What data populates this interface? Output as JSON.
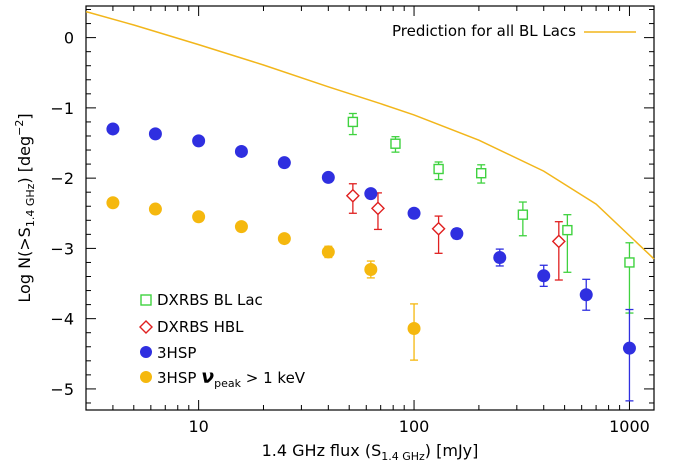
{
  "chart_data": {
    "type": "scatter",
    "xlabel": {
      "main": "1.4 GHz flux (S",
      "sub": "1.4 GHz",
      "tail": ") [mJy]"
    },
    "ylabel": {
      "main": "Log N(>S",
      "sub": "1.4 GHz",
      "tail": ") [deg",
      "sup": "−2",
      "end": "]"
    },
    "x_scale": "log",
    "xlim": [
      3,
      1300
    ],
    "ylim": [
      -5.3,
      0.45
    ],
    "x_ticks": [
      10,
      100,
      1000
    ],
    "x_tick_labels": [
      "10",
      "100",
      "1000"
    ],
    "y_ticks": [
      0,
      -1,
      -2,
      -3,
      -4,
      -5
    ],
    "y_tick_labels": [
      "0",
      "−1",
      "−2",
      "−3",
      "−4",
      "−5"
    ],
    "legend_placement": "bottom-left",
    "prediction": {
      "name": "Prediction for all BL Lacs",
      "color": "#f2b61b",
      "x": [
        3,
        5,
        10,
        20,
        40,
        70,
        100,
        200,
        400,
        700,
        1300
      ],
      "y": [
        0.37,
        0.18,
        -0.1,
        -0.39,
        -0.7,
        -0.94,
        -1.1,
        -1.46,
        -1.9,
        -2.37,
        -3.15
      ]
    },
    "series": [
      {
        "name": "DXRBS BL Lac",
        "marker": "square",
        "color": "#3fd23f",
        "x": [
          52,
          82,
          130,
          205,
          320,
          515,
          1000
        ],
        "y": [
          -1.2,
          -1.51,
          -1.87,
          -1.93,
          -2.52,
          -2.74,
          -3.2
        ],
        "err_up": [
          0.12,
          0.1,
          0.1,
          0.12,
          0.18,
          0.22,
          0.28
        ],
        "err_down": [
          0.18,
          0.12,
          0.15,
          0.14,
          0.3,
          0.6,
          0.72
        ]
      },
      {
        "name": "DXRBS HBL",
        "marker": "diamond",
        "color": "#e02020",
        "x": [
          52,
          68,
          130,
          470
        ],
        "y": [
          -2.25,
          -2.43,
          -2.72,
          -2.9
        ],
        "err_up": [
          0.17,
          0.22,
          0.18,
          0.28
        ],
        "err_down": [
          0.25,
          0.3,
          0.35,
          0.55
        ]
      },
      {
        "name": "3HSP",
        "marker": "circle",
        "color": "#2f2fe0",
        "x": [
          4,
          6.3,
          10,
          15.8,
          25,
          40,
          63,
          100,
          158,
          250,
          400,
          630,
          1000
        ],
        "y": [
          -1.3,
          -1.37,
          -1.47,
          -1.62,
          -1.78,
          -1.99,
          -2.22,
          -2.5,
          -2.79,
          -3.13,
          -3.39,
          -3.66,
          -4.42
        ],
        "err_up": [
          0.02,
          0.02,
          0.02,
          0.02,
          0.03,
          0.03,
          0.04,
          0.05,
          0.07,
          0.12,
          0.15,
          0.22,
          0.55
        ],
        "err_down": [
          0.02,
          0.02,
          0.02,
          0.02,
          0.03,
          0.03,
          0.04,
          0.05,
          0.07,
          0.12,
          0.15,
          0.22,
          0.75
        ]
      },
      {
        "name": "3HSP ν_peak > 1 keV",
        "marker": "circle",
        "color": "#f5b80e",
        "x": [
          4,
          6.3,
          10,
          15.8,
          25,
          40,
          63,
          100
        ],
        "y": [
          -2.35,
          -2.44,
          -2.55,
          -2.69,
          -2.86,
          -3.05,
          -3.3,
          -4.14
        ],
        "err_up": [
          0.02,
          0.02,
          0.03,
          0.04,
          0.06,
          0.08,
          0.12,
          0.35
        ],
        "err_down": [
          0.02,
          0.02,
          0.03,
          0.04,
          0.06,
          0.08,
          0.12,
          0.45
        ]
      }
    ]
  },
  "legend": {
    "prediction_label": "Prediction for all BL Lacs",
    "items": [
      {
        "text": "DXRBS BL Lac"
      },
      {
        "text": "DXRBS HBL"
      },
      {
        "text": "3HSP"
      },
      {
        "main": "3HSP ",
        "nu": "ν",
        "sub": "peak",
        "tail": " > 1 keV"
      }
    ]
  }
}
